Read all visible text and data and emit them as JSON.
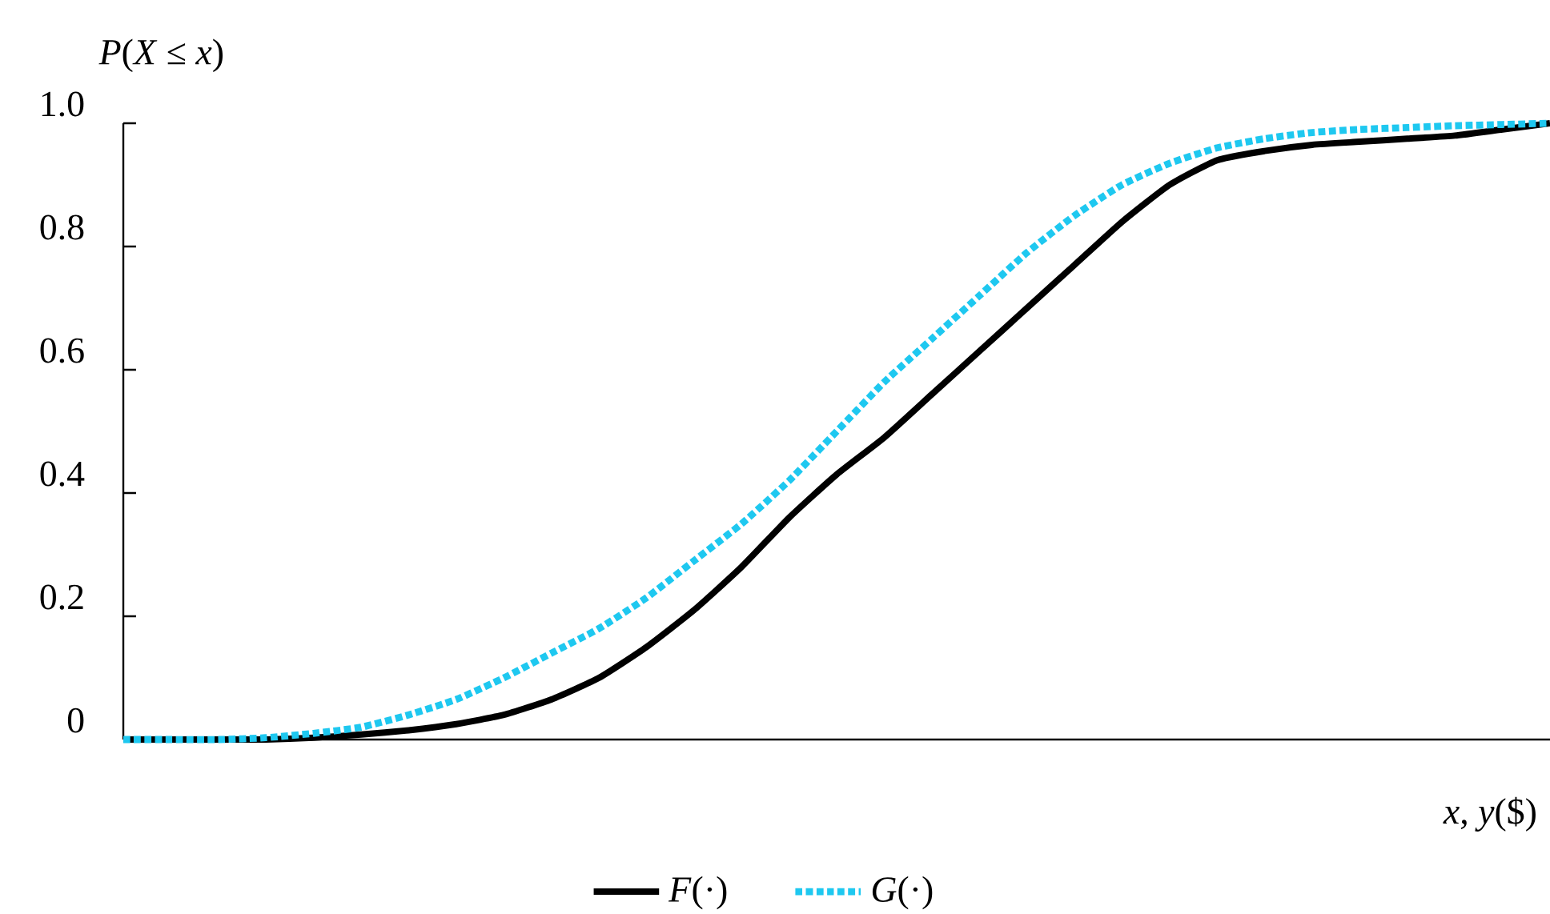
{
  "chart_data": {
    "type": "line",
    "xlabel": "*x*, *y*($)",
    "ylabel": "*P*(*X* ≤ *x*)",
    "categories": [
      null,
      null,
      null,
      null,
      null,
      null,
      null,
      null,
      null,
      null,
      null,
      null,
      null,
      null,
      null,
      null,
      null,
      null,
      null,
      null,
      null,
      null,
      null,
      null,
      null,
      null,
      null,
      null,
      null,
      null,
      null
    ],
    "series": [
      {
        "name": "*F*(·)",
        "color": "#000000",
        "line_style": "solid",
        "values": [
          0,
          0,
          0,
          0,
          0.003,
          0.008,
          0.015,
          0.025,
          0.04,
          0.065,
          0.1,
          0.15,
          0.21,
          0.28,
          0.36,
          0.43,
          0.49,
          0.56,
          0.63,
          0.7,
          0.77,
          0.84,
          0.9,
          0.94,
          0.955,
          0.965,
          0.97,
          0.975,
          0.98,
          0.99,
          1.0
        ]
      },
      {
        "name": "*G*(·)",
        "color": "#1ec8f0",
        "line_style": "dotted",
        "values": [
          0,
          0,
          0,
          0.003,
          0.01,
          0.02,
          0.04,
          0.065,
          0.1,
          0.14,
          0.18,
          0.23,
          0.29,
          0.35,
          0.42,
          0.5,
          0.58,
          0.65,
          0.72,
          0.79,
          0.85,
          0.9,
          0.935,
          0.96,
          0.975,
          0.985,
          0.99,
          0.993,
          0.996,
          0.998,
          1.0
        ]
      }
    ],
    "ylim": [
      0,
      1
    ],
    "yticks": [
      0,
      0.2,
      0.4,
      0.6,
      0.8,
      {
        "value": 1,
        "label": "1.0"
      }
    ],
    "legend": "bottom",
    "marker": "none",
    "grid": false
  }
}
